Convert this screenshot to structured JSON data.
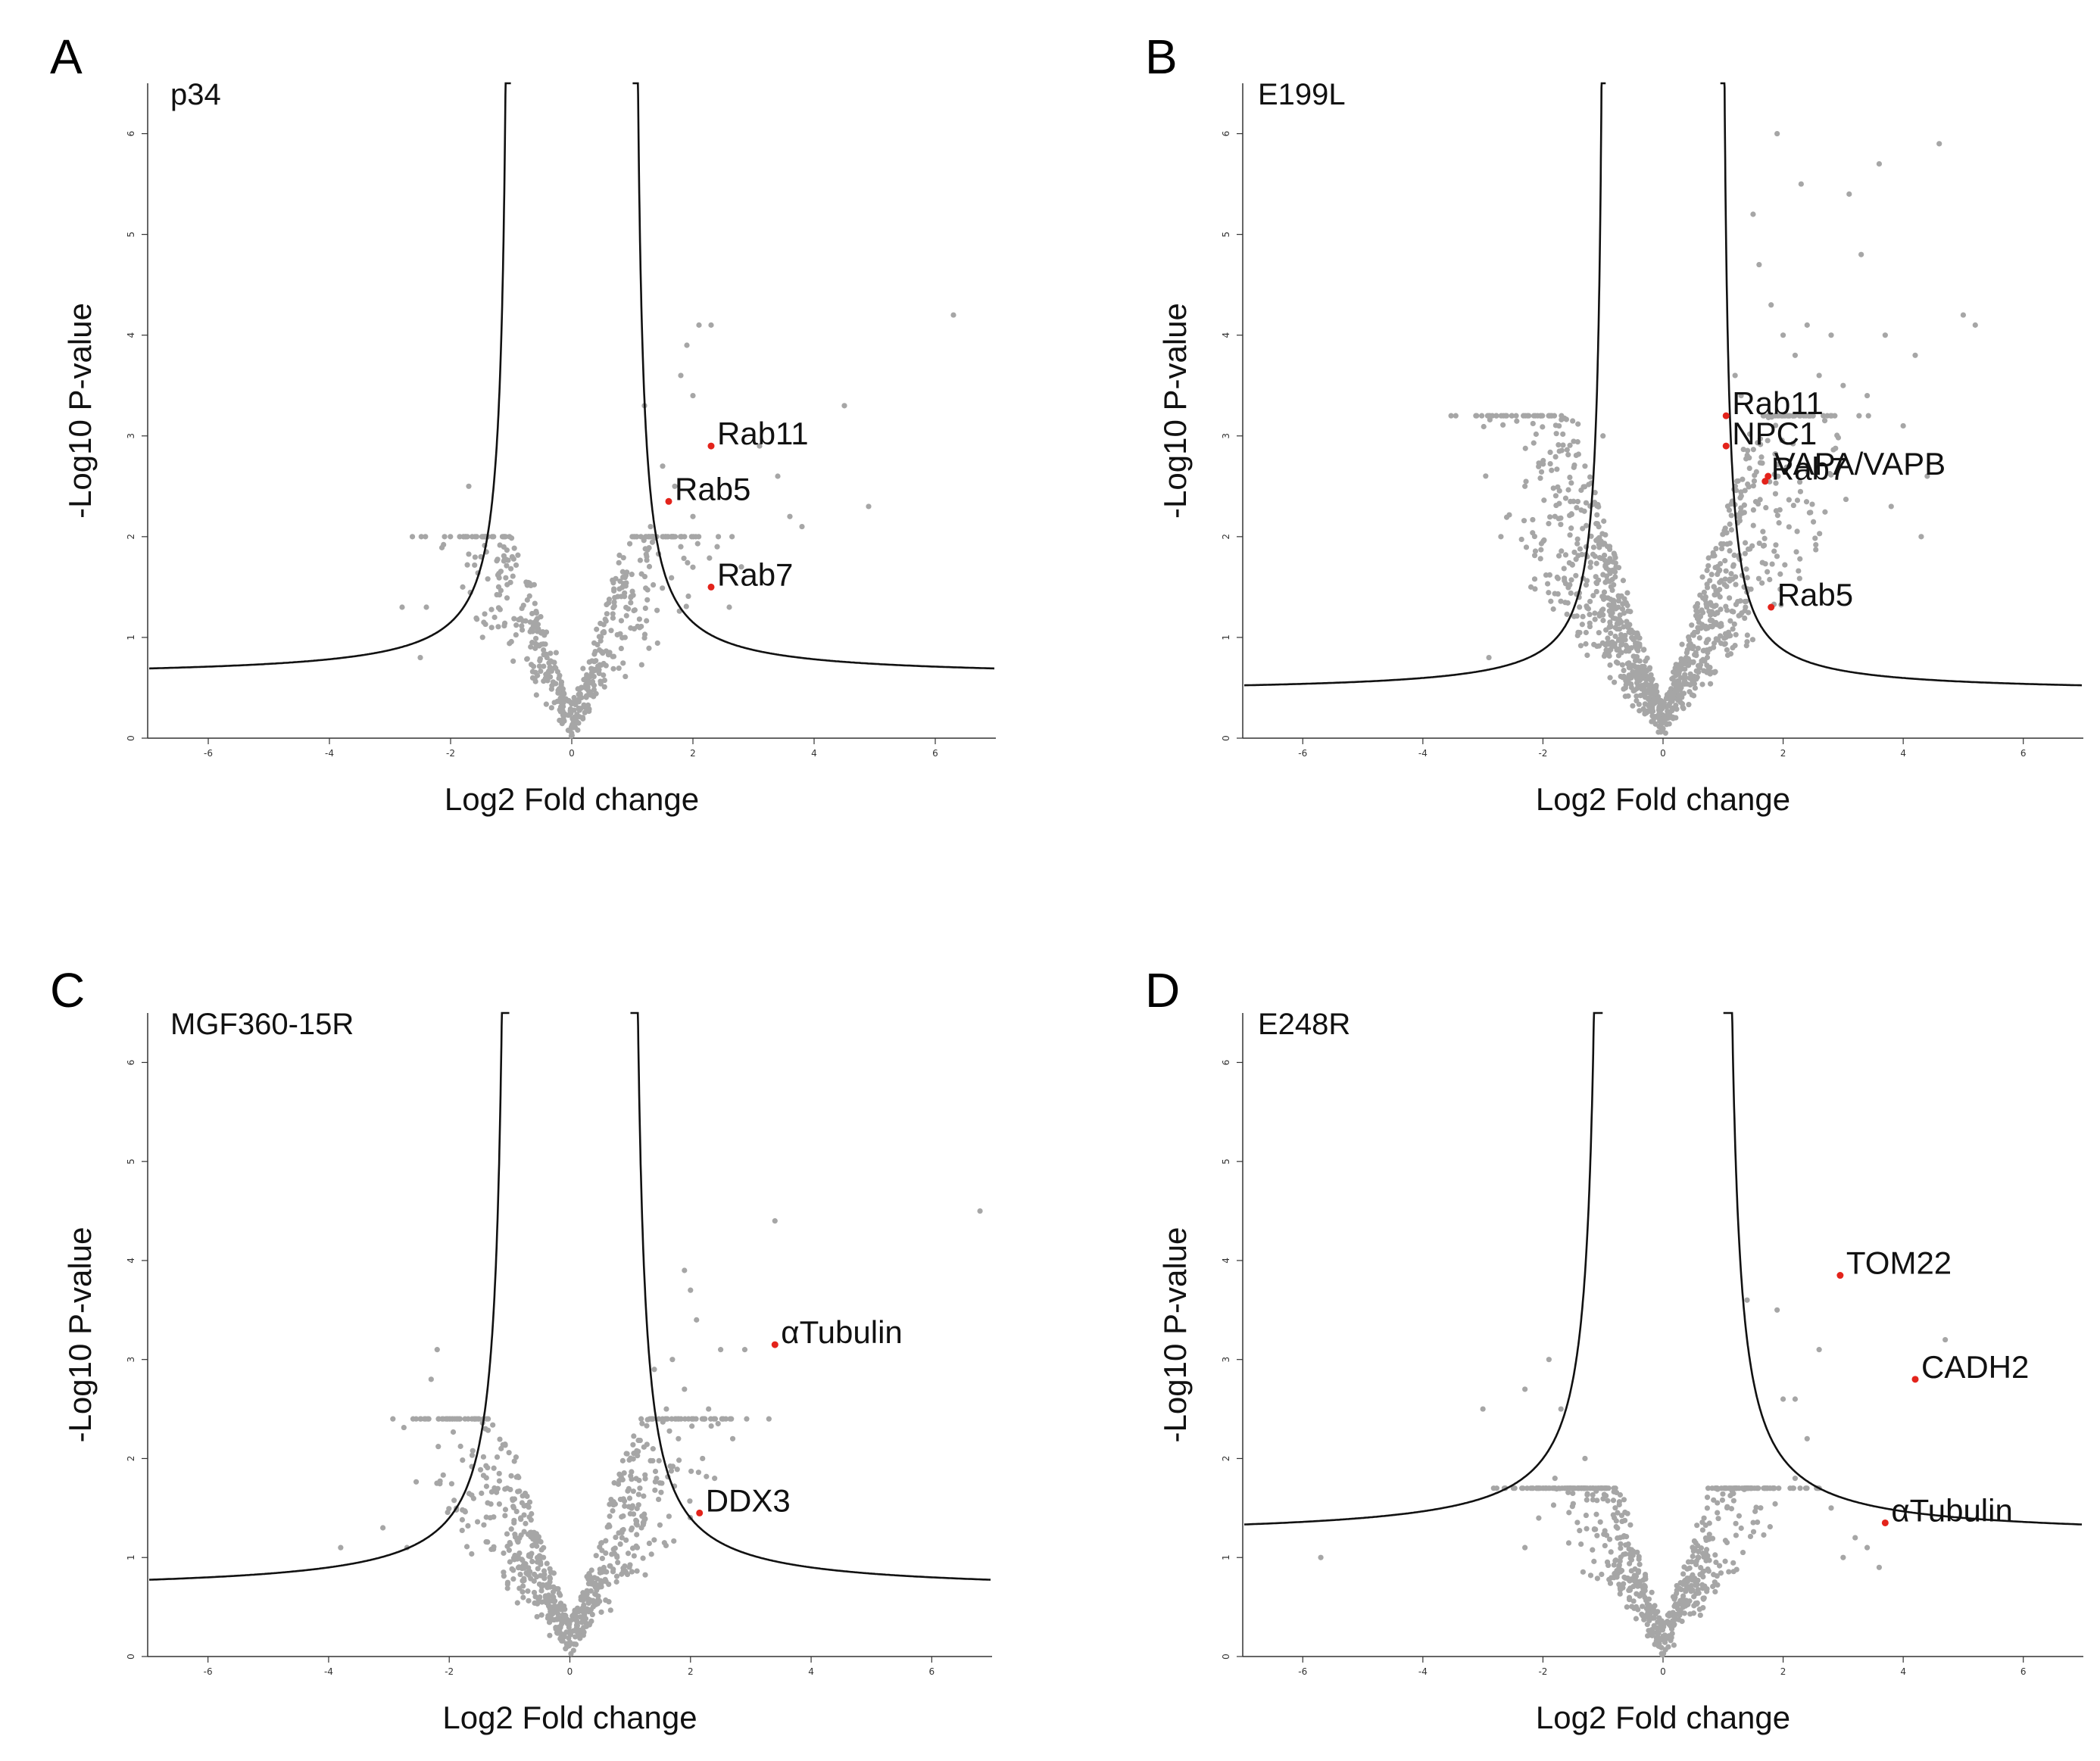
{
  "chart_data": [
    {
      "panel": "A",
      "type": "scatter",
      "subtype": "volcano",
      "title": "p34",
      "xlabel": "Log2  Fold change",
      "ylabel": "-Log10 P-value",
      "xlim": [
        -7,
        7
      ],
      "ylim": [
        0,
        6.5
      ],
      "xticks": [
        -6,
        -4,
        -2,
        0,
        2,
        4,
        6
      ],
      "yticks": [
        0,
        1,
        2,
        3,
        4,
        5,
        6
      ],
      "threshold": {
        "x0": 1.0,
        "c": 0.55,
        "y_asymptote": 0.6
      },
      "background_points": {
        "seed": 11,
        "n": 520,
        "spread_x": 1.2,
        "max_y": 2.0
      },
      "outliers": [
        [
          1.9,
          3.9
        ],
        [
          2.1,
          4.1
        ],
        [
          2.3,
          4.1
        ],
        [
          1.8,
          3.6
        ],
        [
          2.0,
          3.4
        ],
        [
          1.2,
          3.3
        ],
        [
          3.1,
          2.9
        ],
        [
          3.4,
          2.6
        ],
        [
          4.5,
          3.3
        ],
        [
          3.6,
          2.2
        ],
        [
          3.8,
          2.1
        ],
        [
          4.9,
          2.3
        ],
        [
          6.3,
          4.2
        ],
        [
          1.5,
          2.7
        ],
        [
          1.7,
          2.5
        ],
        [
          2.0,
          2.2
        ],
        [
          2.4,
          1.9
        ],
        [
          2.8,
          1.7
        ],
        [
          2.6,
          1.3
        ],
        [
          1.8,
          1.9
        ],
        [
          1.3,
          2.1
        ],
        [
          1.5,
          2.0
        ],
        [
          -2.8,
          1.3
        ],
        [
          -2.4,
          1.3
        ],
        [
          -1.7,
          2.5
        ],
        [
          -1.5,
          1.8
        ],
        [
          -1.8,
          1.5
        ],
        [
          -2.5,
          0.8
        ]
      ],
      "highlights": [
        {
          "label": "Rab11",
          "x": 2.3,
          "y": 2.9
        },
        {
          "label": "Rab5",
          "x": 1.6,
          "y": 2.35
        },
        {
          "label": "Rab7",
          "x": 2.3,
          "y": 1.5
        }
      ],
      "highlight_color": "#e3231b",
      "point_color": "#a6a6a6"
    },
    {
      "panel": "B",
      "type": "scatter",
      "subtype": "volcano",
      "title": "E199L",
      "xlabel": "Log2  Fold change",
      "ylabel": "-Log10 P-value",
      "xlim": [
        -7,
        7
      ],
      "ylim": [
        0,
        6.5
      ],
      "xticks": [
        -6,
        -4,
        -2,
        0,
        2,
        4,
        6
      ],
      "yticks": [
        0,
        1,
        2,
        3,
        4,
        5,
        6
      ],
      "threshold": {
        "x0": 0.95,
        "c": 0.45,
        "y_asymptote": 0.45
      },
      "background_points": {
        "seed": 23,
        "n": 1100,
        "spread_x": 1.6,
        "max_y": 3.2
      },
      "outliers": [
        [
          1.9,
          6.0
        ],
        [
          4.6,
          5.9
        ],
        [
          3.6,
          5.7
        ],
        [
          2.3,
          5.5
        ],
        [
          3.1,
          5.4
        ],
        [
          1.5,
          5.2
        ],
        [
          1.6,
          4.7
        ],
        [
          3.3,
          4.8
        ],
        [
          5.0,
          4.2
        ],
        [
          5.2,
          4.1
        ],
        [
          2.4,
          4.1
        ],
        [
          2.8,
          4.0
        ],
        [
          3.7,
          4.0
        ],
        [
          4.2,
          3.8
        ],
        [
          1.8,
          4.3
        ],
        [
          2.0,
          4.0
        ],
        [
          2.2,
          3.8
        ],
        [
          2.6,
          3.6
        ],
        [
          3.0,
          3.5
        ],
        [
          3.4,
          3.4
        ],
        [
          2.5,
          3.2
        ],
        [
          1.3,
          3.4
        ],
        [
          1.2,
          3.6
        ],
        [
          4.0,
          3.1
        ],
        [
          4.4,
          2.6
        ],
        [
          3.8,
          2.3
        ],
        [
          4.3,
          2.0
        ],
        [
          -1.0,
          3.0
        ],
        [
          -1.3,
          2.7
        ],
        [
          -2.3,
          2.5
        ],
        [
          -1.8,
          2.2
        ],
        [
          -2.7,
          2.0
        ],
        [
          -2.9,
          0.8
        ],
        [
          -2.2,
          1.5
        ]
      ],
      "highlights": [
        {
          "label": "Rab11",
          "x": 1.05,
          "y": 3.2
        },
        {
          "label": "NPC1",
          "x": 1.05,
          "y": 2.9
        },
        {
          "label": "VAPA/VAPB",
          "x": 1.75,
          "y": 2.6
        },
        {
          "label": "Rab7",
          "x": 1.7,
          "y": 2.55
        },
        {
          "label": "Rab5",
          "x": 1.8,
          "y": 1.3
        }
      ],
      "highlight_color": "#e3231b",
      "point_color": "#a6a6a6"
    },
    {
      "panel": "C",
      "type": "scatter",
      "subtype": "volcano",
      "title": "MGF360-15R",
      "xlabel": "Log2  Fold change",
      "ylabel": "-Log10 P-value",
      "xlim": [
        -7,
        7
      ],
      "ylim": [
        0,
        6.5
      ],
      "xticks": [
        -6,
        -4,
        -2,
        0,
        2,
        4,
        6
      ],
      "yticks": [
        0,
        1,
        2,
        3,
        4,
        5,
        6
      ],
      "threshold": {
        "x0": 1.0,
        "c": 0.75,
        "y_asymptote": 0.65
      },
      "background_points": {
        "seed": 37,
        "n": 700,
        "spread_x": 1.4,
        "max_y": 2.4
      },
      "outliers": [
        [
          3.4,
          4.4
        ],
        [
          6.8,
          4.5
        ],
        [
          1.9,
          3.9
        ],
        [
          2.0,
          3.7
        ],
        [
          2.1,
          3.4
        ],
        [
          1.7,
          3.0
        ],
        [
          2.5,
          3.1
        ],
        [
          2.9,
          3.1
        ],
        [
          1.4,
          2.9
        ],
        [
          1.9,
          2.7
        ],
        [
          1.6,
          2.5
        ],
        [
          2.3,
          2.5
        ],
        [
          2.7,
          2.2
        ],
        [
          3.3,
          2.4
        ],
        [
          1.8,
          2.2
        ],
        [
          2.2,
          2.0
        ],
        [
          2.4,
          1.8
        ],
        [
          -2.2,
          3.1
        ],
        [
          -2.6,
          2.4
        ],
        [
          -2.3,
          2.8
        ],
        [
          -1.4,
          2.3
        ],
        [
          -3.1,
          1.3
        ],
        [
          -3.8,
          1.1
        ],
        [
          -2.7,
          1.1
        ]
      ],
      "highlights": [
        {
          "label": "αTubulin",
          "x": 3.4,
          "y": 3.15
        },
        {
          "label": "DDX3",
          "x": 2.15,
          "y": 1.45
        }
      ],
      "highlight_color": "#e3231b",
      "point_color": "#a6a6a6"
    },
    {
      "panel": "D",
      "type": "scatter",
      "subtype": "volcano",
      "title": "E248R",
      "xlabel": "Log2  Fold change",
      "ylabel": "-Log10 P-value",
      "xlim": [
        -7,
        7
      ],
      "ylim": [
        0,
        6.5
      ],
      "xticks": [
        -6,
        -4,
        -2,
        0,
        2,
        4,
        6
      ],
      "yticks": [
        0,
        1,
        2,
        3,
        4,
        5,
        6
      ],
      "threshold": {
        "x0": 1.0,
        "c": 0.8,
        "y_asymptote": 1.2
      },
      "background_points": {
        "seed": 53,
        "n": 620,
        "spread_x": 1.3,
        "max_y": 1.7
      },
      "outliers": [
        [
          4.7,
          3.2
        ],
        [
          2.6,
          3.1
        ],
        [
          1.4,
          3.6
        ],
        [
          1.9,
          3.5
        ],
        [
          2.0,
          2.6
        ],
        [
          2.2,
          2.6
        ],
        [
          2.4,
          2.2
        ],
        [
          2.2,
          1.8
        ],
        [
          2.6,
          1.7
        ],
        [
          2.8,
          1.5
        ],
        [
          3.2,
          1.2
        ],
        [
          3.4,
          1.1
        ],
        [
          3.0,
          1.0
        ],
        [
          3.6,
          0.9
        ],
        [
          -1.9,
          3.0
        ],
        [
          -2.3,
          2.7
        ],
        [
          -1.7,
          2.5
        ],
        [
          -3.0,
          2.5
        ],
        [
          -2.3,
          1.1
        ],
        [
          -5.7,
          1.0
        ],
        [
          -1.3,
          2.0
        ],
        [
          -1.8,
          1.8
        ]
      ],
      "highlights": [
        {
          "label": "TOM22",
          "x": 2.95,
          "y": 3.85
        },
        {
          "label": "CADH2",
          "x": 4.2,
          "y": 2.8
        },
        {
          "label": "αTubulin",
          "x": 3.7,
          "y": 1.35
        }
      ],
      "highlight_color": "#e3231b",
      "point_color": "#a6a6a6"
    }
  ]
}
